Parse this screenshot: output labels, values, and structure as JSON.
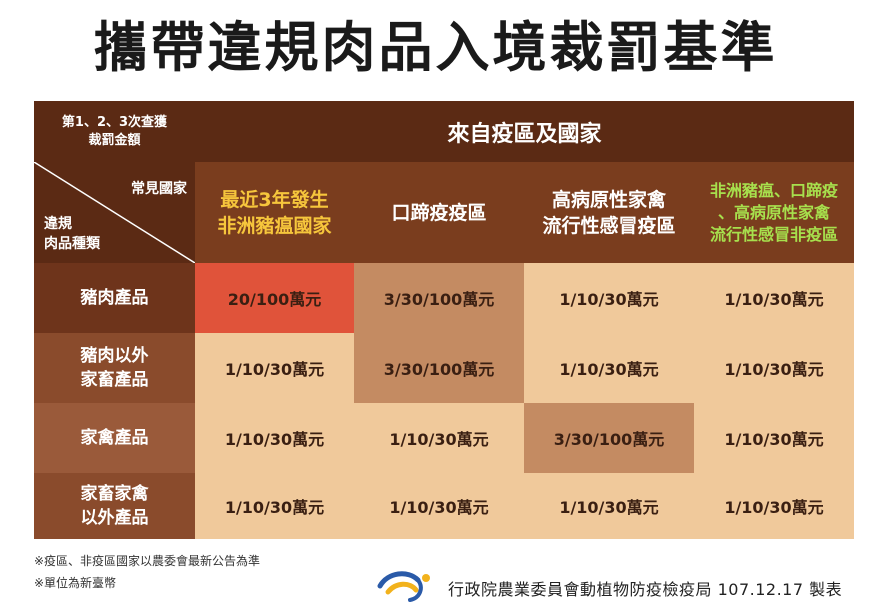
{
  "title": "攜帶違規肉品入境裁罰基準",
  "table": {
    "corner_top": "第1、2、3次查獲\n裁罰金額",
    "from_region": "來自疫區及國家",
    "corner_common_country": "常見國家",
    "corner_meat_type": "違規\n肉品種類",
    "columns": [
      "最近3年發生\n非洲豬瘟國家",
      "口蹄疫疫區",
      "高病原性家禽\n流行性感冒疫區",
      "非洲豬瘟、口蹄疫\n、高病原性家禽\n流行性感冒非疫區"
    ],
    "rows": [
      {
        "label": "豬肉產品",
        "values": [
          "20/100萬元",
          "3/30/100萬元",
          "1/10/30萬元",
          "1/10/30萬元"
        ]
      },
      {
        "label": "豬肉以外\n家畜產品",
        "values": [
          "1/10/30萬元",
          "3/30/100萬元",
          "1/10/30萬元",
          "1/10/30萬元"
        ]
      },
      {
        "label": "家禽產品",
        "values": [
          "1/10/30萬元",
          "1/10/30萬元",
          "3/30/100萬元",
          "1/10/30萬元"
        ]
      },
      {
        "label": "家畜家禽\n以外產品",
        "values": [
          "1/10/30萬元",
          "1/10/30萬元",
          "1/10/30萬元",
          "1/10/30萬元"
        ]
      }
    ]
  },
  "footnotes": [
    "※疫區、非疫區國家以農委會最新公告為準",
    "※單位為新臺幣"
  ],
  "agency": "行政院農業委員會動植物防疫檢疫局 107.12.17 製表",
  "colors": {
    "header_dark": "#5b2a14",
    "cell_bg": "#f0c99b",
    "highlight_red": "#e0533a",
    "highlight_tan": "#c48b62",
    "yellow_text": "#f6c63c",
    "green_text": "#a7e04d"
  }
}
